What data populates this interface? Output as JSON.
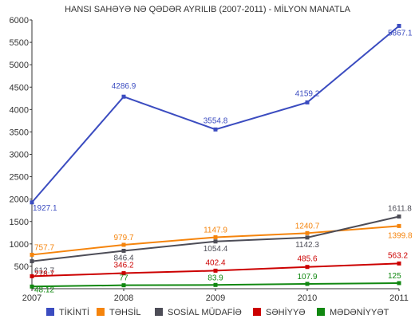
{
  "chart_data": {
    "type": "line",
    "title": "HANSI SAHƏYƏ NƏ QƏDƏR AYRILIB (2007-2011) - MİLYON MANATLA",
    "xlabel": "",
    "ylabel": "",
    "categories": [
      "2007",
      "2008",
      "2009",
      "2010",
      "2011"
    ],
    "ylim": [
      0,
      6000
    ],
    "yticks": [
      500,
      1000,
      1500,
      2000,
      2500,
      3000,
      3500,
      4000,
      4500,
      5000,
      5500,
      6000
    ],
    "grid": false,
    "legend_position": "bottom",
    "series": [
      {
        "name": "TİKİNTİ",
        "color": "#3b4cc0",
        "values": [
          1927.1,
          4286.9,
          3554.8,
          4159.2,
          5867.1
        ],
        "labels": [
          "1927.1",
          "4286.9",
          "3554.8",
          "4159.2",
          "5867.1"
        ]
      },
      {
        "name": "TƏHSİL",
        "color": "#f5840c",
        "values": [
          757.7,
          979.7,
          1147.9,
          1240.7,
          1399.8
        ],
        "labels": [
          "757.7",
          "979.7",
          "1147.9",
          "1240.7",
          "1399.8"
        ]
      },
      {
        "name": "SOSİAL MÜDAFİƏ",
        "color": "#4d4d57",
        "values": [
          612.7,
          846.4,
          1054.4,
          1142.3,
          1611.8
        ],
        "labels": [
          "612.7",
          "846.4",
          "1054.4",
          "1142.3",
          "1611.8"
        ]
      },
      {
        "name": "SƏHİYYƏ",
        "color": "#cc0000",
        "values": [
          278.7,
          346.2,
          402.4,
          485.6,
          563.2
        ],
        "labels": [
          "278.7",
          "346.2",
          "402.4",
          "485.6",
          "563.2"
        ]
      },
      {
        "name": "MƏDƏNİYYƏT",
        "color": "#118811",
        "values": [
          48.12,
          77,
          83.9,
          107.9,
          125
        ],
        "labels": [
          "48.12",
          "77",
          "83.9",
          "107.9",
          "125"
        ]
      }
    ]
  }
}
